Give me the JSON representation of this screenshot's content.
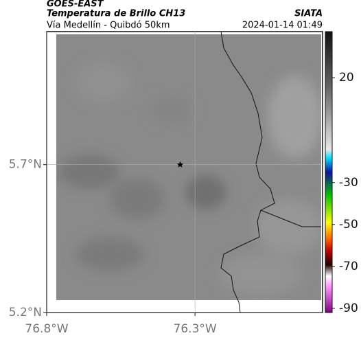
{
  "header": {
    "title": "GOES-EAST",
    "subtitle": "Temperatura de Brillo CH13",
    "source": "SIATA",
    "route": "Vía Medellín - Quibdó 50km",
    "timestamp": "2024-01-14 01:49"
  },
  "chart_data": {
    "type": "map",
    "xlim": [
      -76.8,
      -75.87
    ],
    "ylim": [
      5.2,
      6.15
    ],
    "xticks": [
      {
        "value": -76.8,
        "label": "76.8°W"
      },
      {
        "value": -76.3,
        "label": "76.3°W"
      }
    ],
    "yticks": [
      {
        "value": 5.2,
        "label": "5.2°N"
      },
      {
        "value": 5.7,
        "label": "5.7°N"
      }
    ],
    "grid": true,
    "marker": {
      "lon": -76.35,
      "lat": 5.7
    },
    "colorbar": {
      "lim": [
        -92,
        42
      ],
      "ticks": [
        20,
        -30,
        -50,
        -70,
        -90
      ]
    }
  }
}
